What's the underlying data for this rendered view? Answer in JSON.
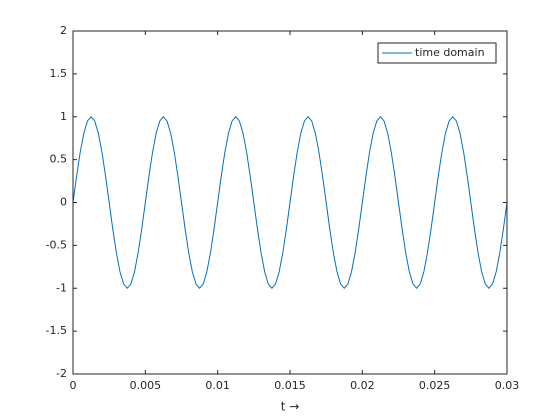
{
  "chart_data": {
    "type": "line",
    "xlabel": "t →",
    "x": [
      0,
      0.00025,
      0.0005,
      0.00075,
      0.001,
      0.00125,
      0.0015,
      0.00175,
      0.002,
      0.00225,
      0.0025,
      0.00275,
      0.003,
      0.00325,
      0.0035,
      0.00375,
      0.004,
      0.00425,
      0.0045,
      0.00475,
      0.005,
      0.00525,
      0.0055,
      0.00575,
      0.006,
      0.00625,
      0.0065,
      0.00675,
      0.007,
      0.00725,
      0.0075,
      0.00775,
      0.008,
      0.00825,
      0.0085,
      0.00875,
      0.009,
      0.00925,
      0.0095,
      0.00975,
      0.01,
      0.01025,
      0.0105,
      0.01075,
      0.011,
      0.01125,
      0.0115,
      0.01175,
      0.012,
      0.01225,
      0.0125,
      0.01275,
      0.013,
      0.01325,
      0.0135,
      0.01375,
      0.014,
      0.01425,
      0.0145,
      0.01475,
      0.015,
      0.01525,
      0.0155,
      0.01575,
      0.016,
      0.01625,
      0.0165,
      0.01675,
      0.017,
      0.01725,
      0.0175,
      0.01775,
      0.018,
      0.01825,
      0.0185,
      0.01875,
      0.019,
      0.01925,
      0.0195,
      0.01975,
      0.02,
      0.02025,
      0.0205,
      0.02075,
      0.021,
      0.02125,
      0.0215,
      0.02175,
      0.022,
      0.02225,
      0.0225,
      0.02275,
      0.023,
      0.02325,
      0.0235,
      0.02375,
      0.024,
      0.02425,
      0.0245,
      0.02475,
      0.025,
      0.02525,
      0.0255,
      0.02575,
      0.026,
      0.02625,
      0.0265,
      0.02675,
      0.027,
      0.02725,
      0.0275,
      0.02775,
      0.028,
      0.02825,
      0.0285,
      0.02875,
      0.029,
      0.02925,
      0.0295,
      0.02975,
      0.03
    ],
    "series": [
      {
        "name": "time domain",
        "color": "#0072bd",
        "values": [
          0,
          0.309,
          0.588,
          0.809,
          0.951,
          1,
          0.951,
          0.809,
          0.588,
          0.309,
          0,
          -0.309,
          -0.588,
          -0.809,
          -0.951,
          -1,
          -0.951,
          -0.809,
          -0.588,
          -0.309,
          0,
          0.309,
          0.588,
          0.809,
          0.951,
          1,
          0.951,
          0.809,
          0.588,
          0.309,
          0,
          -0.309,
          -0.588,
          -0.809,
          -0.951,
          -1,
          -0.951,
          -0.809,
          -0.588,
          -0.309,
          0,
          0.309,
          0.588,
          0.809,
          0.951,
          1,
          0.951,
          0.809,
          0.588,
          0.309,
          0,
          -0.309,
          -0.588,
          -0.809,
          -0.951,
          -1,
          -0.951,
          -0.809,
          -0.588,
          -0.309,
          0,
          0.309,
          0.588,
          0.809,
          0.951,
          1,
          0.951,
          0.809,
          0.588,
          0.309,
          0,
          -0.309,
          -0.588,
          -0.809,
          -0.951,
          -1,
          -0.951,
          -0.809,
          -0.588,
          -0.309,
          0,
          0.309,
          0.588,
          0.809,
          0.951,
          1,
          0.951,
          0.809,
          0.588,
          0.309,
          0,
          -0.309,
          -0.588,
          -0.809,
          -0.951,
          -1,
          -0.951,
          -0.809,
          -0.588,
          -0.309,
          0,
          0.309,
          0.588,
          0.809,
          0.951,
          1,
          0.951,
          0.809,
          0.588,
          0.309,
          0,
          -0.309,
          -0.588,
          -0.809,
          -0.951,
          -1,
          -0.951,
          -0.809,
          -0.588,
          -0.309,
          0
        ]
      }
    ],
    "xlim": [
      0,
      0.03
    ],
    "xticks": [
      0,
      0.005,
      0.01,
      0.015,
      0.02,
      0.025,
      0.03
    ],
    "ylim": [
      -2,
      2
    ],
    "yticks": [
      -2,
      -1.5,
      -1,
      -0.5,
      0,
      0.5,
      1,
      1.5,
      2
    ],
    "legend": "top-right"
  }
}
